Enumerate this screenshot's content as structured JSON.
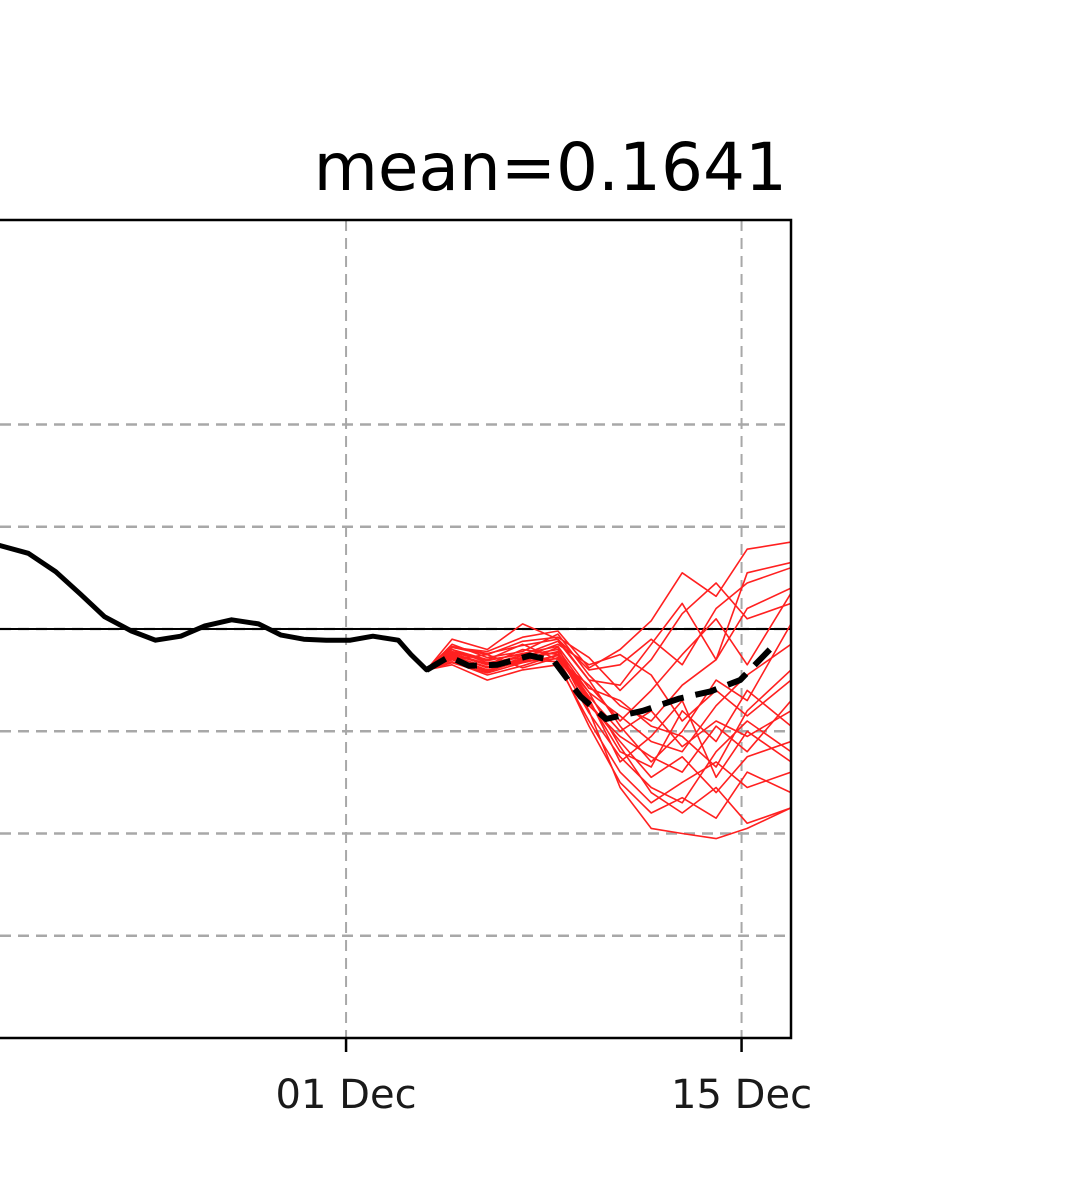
{
  "chart_data": {
    "type": "line",
    "title": "mean=0.1641",
    "xlabel": "",
    "ylabel": "",
    "x_ticks": [
      {
        "label": "01 Dec",
        "day": 0
      },
      {
        "label": "15 Dec",
        "day": 14
      }
    ],
    "y_gridlines": [
      2,
      1,
      0,
      -1,
      -2,
      -3
    ],
    "xlim": [
      -12.25,
      15.75
    ],
    "ylim": [
      -4,
      4
    ],
    "zero_line": 0,
    "grid": true,
    "colors": {
      "observed": "#000000",
      "ensemble": "#ff2020",
      "ensemble_mean": "#000000",
      "grid": "#a8a8a8",
      "axes": "#000000"
    },
    "observed": {
      "name": "observed",
      "x": [
        -12.3,
        -11.25,
        -10.28,
        -9.4,
        -8.55,
        -7.6,
        -6.75,
        -5.85,
        -5,
        -4.05,
        -3.1,
        -2.3,
        -1.5,
        -0.7,
        0.15,
        0.95,
        1.85,
        2.3,
        2.85
      ],
      "y": [
        0.82,
        0.74,
        0.56,
        0.34,
        0.12,
        -0.02,
        -0.11,
        -0.07,
        0.03,
        0.09,
        0.05,
        -0.06,
        -0.1,
        -0.11,
        -0.11,
        -0.07,
        -0.11,
        -0.25,
        -0.4
      ]
    },
    "ensemble_mean": {
      "name": "ensemble mean",
      "x": [
        2.85,
        3.65,
        4.35,
        5.35,
        6.5,
        7.35,
        8.3,
        9.2,
        10.5,
        11.8,
        12.9,
        13.95,
        15
      ],
      "y": [
        -0.4,
        -0.27,
        -0.36,
        -0.35,
        -0.26,
        -0.31,
        -0.66,
        -0.88,
        -0.8,
        -0.68,
        -0.61,
        -0.5,
        -0.2
      ]
    },
    "ensemble": [
      {
        "x": [
          2.85,
          3.75,
          5,
          6.25,
          7.5,
          8.6,
          9.7,
          10.8,
          11.9,
          13.1,
          14.2,
          15.75
        ],
        "y": [
          -0.4,
          -0.18,
          -0.22,
          -0.08,
          -0.02,
          -0.38,
          -0.2,
          0.08,
          0.55,
          0.32,
          0.78,
          0.85
        ]
      },
      {
        "x": [
          2.85,
          3.75,
          5,
          6.25,
          7.5,
          8.6,
          9.7,
          10.8,
          11.9,
          13.1,
          14.2,
          15.75
        ],
        "y": [
          -0.4,
          -0.25,
          -0.35,
          -0.2,
          -0.25,
          -0.62,
          -1.15,
          -1.6,
          -1.8,
          -1.55,
          -1.9,
          -1.75
        ]
      },
      {
        "x": [
          2.85,
          3.75,
          5,
          6.25,
          7.5,
          8.6,
          9.7,
          10.8,
          11.9,
          13.1,
          14.2,
          15.75
        ],
        "y": [
          -0.4,
          -0.3,
          -0.42,
          -0.3,
          -0.22,
          -0.8,
          -1.55,
          -1.95,
          -2,
          -2.05,
          -1.95,
          -1.75
        ]
      },
      {
        "x": [
          2.85,
          3.75,
          5,
          6.25,
          7.5,
          8.6,
          9.7,
          10.8,
          11.9,
          13.1,
          14.2,
          15.75
        ],
        "y": [
          -0.4,
          -0.1,
          -0.2,
          0.05,
          -0.1,
          -0.5,
          -0.55,
          -0.15,
          0.25,
          -0.3,
          0.55,
          0.65
        ]
      },
      {
        "x": [
          2.85,
          3.75,
          5,
          6.25,
          7.5,
          8.6,
          9.7,
          10.8,
          11.9,
          13.1,
          14.2,
          15.75
        ],
        "y": [
          -0.4,
          -0.3,
          -0.25,
          -0.38,
          -0.28,
          -0.7,
          -1.2,
          -1.35,
          -0.8,
          -1.1,
          -0.6,
          -0.95
        ]
      },
      {
        "x": [
          2.85,
          3.75,
          5,
          6.25,
          7.5,
          8.6,
          9.7,
          10.8,
          11.9,
          13.1,
          14.2,
          15.75
        ],
        "y": [
          -0.4,
          -0.22,
          -0.3,
          -0.15,
          -0.3,
          -0.55,
          -0.9,
          -0.6,
          -0.25,
          0.1,
          -0.35,
          0.35
        ]
      },
      {
        "x": [
          2.85,
          3.75,
          5,
          6.25,
          7.5,
          8.6,
          9.7,
          10.8,
          11.9,
          13.1,
          14.2,
          15.75
        ],
        "y": [
          -0.4,
          -0.35,
          -0.5,
          -0.4,
          -0.35,
          -0.9,
          -1.4,
          -1.7,
          -1.5,
          -1.3,
          -1.55,
          -1.4
        ]
      },
      {
        "x": [
          2.85,
          3.75,
          5,
          6.25,
          7.5,
          8.6,
          9.7,
          10.8,
          11.9,
          13.1,
          14.2,
          15.75
        ],
        "y": [
          -0.4,
          -0.15,
          -0.28,
          -0.22,
          -0.05,
          -0.45,
          -0.75,
          -0.9,
          -0.55,
          -0.3,
          0.2,
          0.4
        ]
      },
      {
        "x": [
          2.85,
          3.75,
          5,
          6.25,
          7.5,
          8.6,
          9.7,
          10.8,
          11.9,
          13.1,
          14.2,
          15.75
        ],
        "y": [
          -0.4,
          -0.28,
          -0.4,
          -0.32,
          -0.18,
          -0.75,
          -1.05,
          -1.25,
          -1.4,
          -0.95,
          -1.2,
          -0.7
        ]
      },
      {
        "x": [
          2.85,
          3.75,
          5,
          6.25,
          7.5,
          8.6,
          9.7,
          10.8,
          11.9,
          13.1,
          14.2,
          15.75
        ],
        "y": [
          -0.4,
          -0.2,
          -0.33,
          -0.28,
          -0.15,
          -0.35,
          -0.25,
          -0.45,
          -0.9,
          -0.6,
          -0.85,
          -0.5
        ]
      },
      {
        "x": [
          2.85,
          3.75,
          5,
          6.25,
          7.5,
          8.6,
          9.7,
          10.8,
          11.9,
          13.1,
          14.2,
          15.75
        ],
        "y": [
          -0.4,
          -0.32,
          -0.45,
          -0.36,
          -0.25,
          -0.68,
          -1.3,
          -1.05,
          -0.7,
          -1.45,
          -1.0,
          -1.3
        ]
      },
      {
        "x": [
          2.85,
          3.75,
          5,
          6.25,
          7.5,
          8.6,
          9.7,
          10.8,
          11.9,
          13.1,
          14.2,
          15.75
        ],
        "y": [
          -0.4,
          -0.18,
          -0.25,
          -0.12,
          -0.08,
          -0.28,
          -0.6,
          -0.3,
          0.15,
          0.45,
          0.1,
          0.25
        ]
      },
      {
        "x": [
          2.85,
          3.75,
          5,
          6.25,
          7.5,
          8.6,
          9.7,
          10.8,
          11.9,
          13.1,
          14.2,
          15.75
        ],
        "y": [
          -0.4,
          -0.26,
          -0.38,
          -0.3,
          -0.32,
          -0.95,
          -1.5,
          -1.8,
          -1.65,
          -1.85,
          -1.4,
          -1.6
        ]
      },
      {
        "x": [
          2.85,
          3.75,
          5,
          6.25,
          7.5,
          8.6,
          9.7,
          10.8,
          11.9,
          13.1,
          14.2,
          15.75
        ],
        "y": [
          -0.4,
          -0.24,
          -0.34,
          -0.26,
          -0.2,
          -0.62,
          -0.85,
          -1.1,
          -1.2,
          -0.75,
          -0.45,
          -0.15
        ]
      },
      {
        "x": [
          2.85,
          3.75,
          5,
          6.25,
          7.5,
          8.6,
          9.7,
          10.8,
          11.9,
          13.1,
          14.2,
          15.75
        ],
        "y": [
          -0.4,
          -0.2,
          -0.3,
          -0.25,
          -0.12,
          -0.5,
          -0.95,
          -1.3,
          -1.0,
          -0.5,
          -0.7,
          0.05
        ]
      },
      {
        "x": [
          2.85,
          3.75,
          5,
          6.25,
          7.5,
          8.6,
          9.7,
          10.8,
          11.9,
          13.1,
          14.2,
          15.75
        ],
        "y": [
          -0.4,
          -0.33,
          -0.43,
          -0.33,
          -0.26,
          -0.72,
          -1.1,
          -1.45,
          -1.25,
          -1.6,
          -1.25,
          -1.1
        ]
      },
      {
        "x": [
          2.85,
          3.75,
          5,
          6.25,
          7.5,
          8.6,
          9.7,
          10.8,
          11.9,
          13.1,
          14.2,
          15.75
        ],
        "y": [
          -0.4,
          -0.17,
          -0.24,
          -0.16,
          -0.1,
          -0.4,
          -0.35,
          -0.1,
          -0.35,
          0.2,
          0.45,
          0.6
        ]
      },
      {
        "x": [
          2.85,
          3.75,
          5,
          6.25,
          7.5,
          8.6,
          9.7,
          10.8,
          11.9,
          13.1,
          14.2,
          15.75
        ],
        "y": [
          -0.4,
          -0.29,
          -0.41,
          -0.31,
          -0.29,
          -0.82,
          -1.25,
          -1.55,
          -1.7,
          -1.2,
          -0.9,
          -1.2
        ]
      },
      {
        "x": [
          2.85,
          3.75,
          5,
          6.25,
          7.5,
          8.6,
          9.7,
          10.8,
          11.9,
          13.1,
          14.2,
          15.75
        ],
        "y": [
          -0.4,
          -0.23,
          -0.31,
          -0.24,
          -0.17,
          -0.58,
          -0.7,
          -0.95,
          -1.05,
          -1.35,
          -0.8,
          -0.4
        ]
      },
      {
        "x": [
          2.85,
          3.75,
          5,
          6.25,
          7.5,
          8.6,
          9.7,
          10.8,
          11.9,
          13.1,
          14.2,
          15.75
        ],
        "y": [
          -0.4,
          -0.27,
          -0.37,
          -0.29,
          -0.23,
          -0.66,
          -1.0,
          -0.8,
          -1.15,
          -0.9,
          -1.05,
          -0.8
        ]
      }
    ]
  }
}
